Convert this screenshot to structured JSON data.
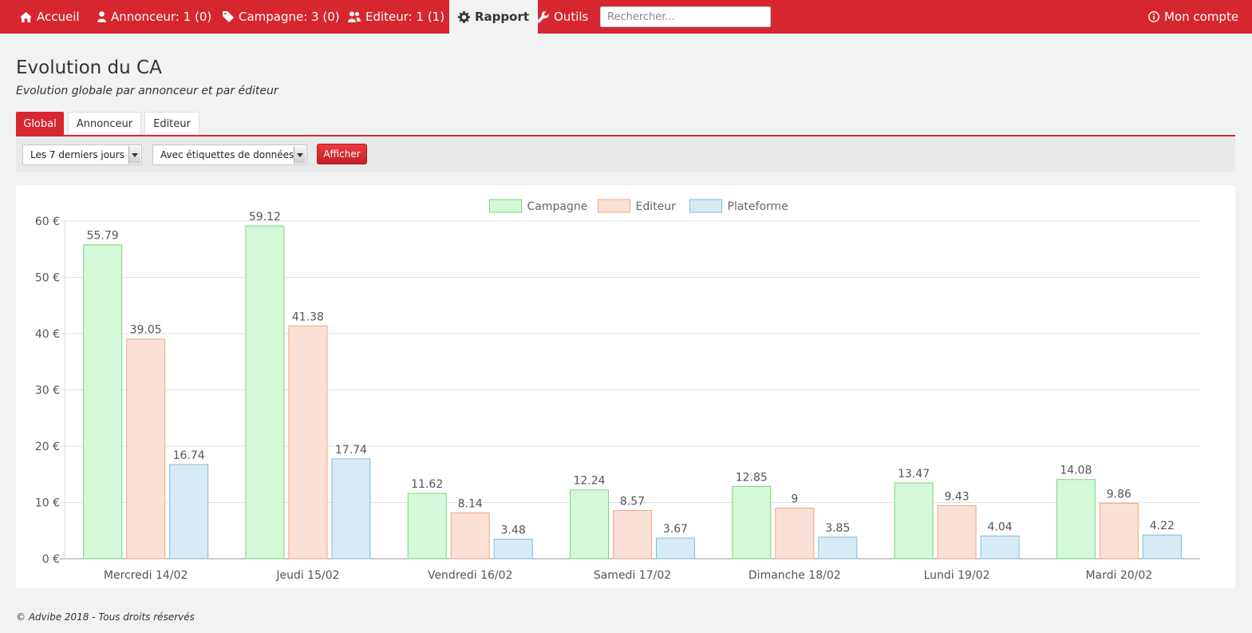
{
  "nav": {
    "home": "Accueil",
    "annonceur": "Annonceur: 1 (0)",
    "campagne": "Campagne: 3 (0)",
    "editeur": "Editeur: 1 (1)",
    "rapport": "Rapport",
    "outils": "Outils",
    "search_placeholder": "Rechercher...",
    "account": "Mon compte"
  },
  "page": {
    "title": "Evolution du CA",
    "subtitle": "Evolution globale par annonceur et par éditeur"
  },
  "tabs": [
    "Global",
    "Annonceur",
    "Editeur"
  ],
  "filters": {
    "period": "Les 7 derniers jours",
    "labels_option": "Avec étiquettes de données",
    "submit": "Afficher"
  },
  "colors": {
    "brand": "#d6262f",
    "campagne_fill": "#d4f9d8",
    "campagne_stroke": "#7ad67f",
    "editeur_fill": "#fbe0d5",
    "editeur_stroke": "#f3a77f",
    "plateforme_fill": "#d7ebf5",
    "plateforme_stroke": "#7fbde0"
  },
  "chart_data": {
    "type": "bar",
    "categories": [
      "Mercredi 14/02",
      "Jeudi 15/02",
      "Vendredi 16/02",
      "Samedi 17/02",
      "Dimanche 18/02",
      "Lundi 19/02",
      "Mardi 20/02"
    ],
    "series": [
      {
        "name": "Campagne",
        "values": [
          55.79,
          59.12,
          11.62,
          12.24,
          12.85,
          13.47,
          14.08
        ]
      },
      {
        "name": "Editeur",
        "values": [
          39.05,
          41.38,
          8.14,
          8.57,
          9,
          9.43,
          9.86
        ]
      },
      {
        "name": "Plateforme",
        "values": [
          16.74,
          17.74,
          3.48,
          3.67,
          3.85,
          4.04,
          4.22
        ]
      }
    ],
    "y_ticks": [
      "0 €",
      "10 €",
      "20 €",
      "30 €",
      "40 €",
      "50 €",
      "60 €"
    ],
    "ylim": [
      0,
      60
    ],
    "grid": true,
    "legend_position": "top-center",
    "data_labels": true
  },
  "footer": "© Advibe 2018 - Tous droits réservés"
}
